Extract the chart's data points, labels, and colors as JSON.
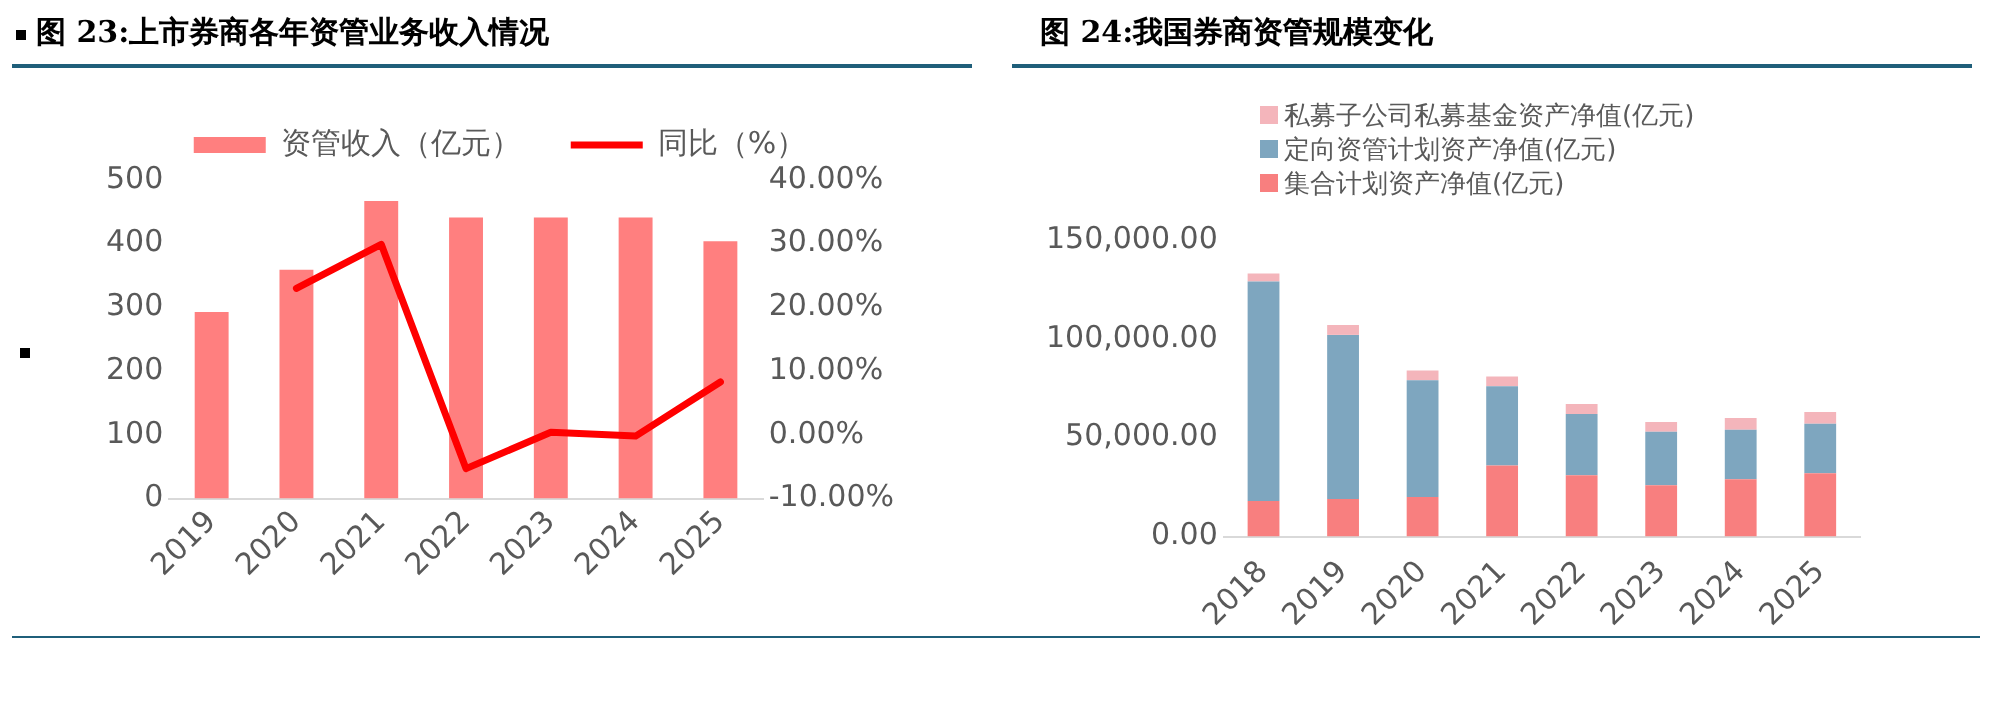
{
  "chart_data": [
    {
      "type": "bar",
      "title": "图 23:上市券商各年资管业务收入情况",
      "categories": [
        "2019",
        "2020",
        "2021",
        "2022",
        "2023",
        "2024",
        "2025"
      ],
      "series": [
        {
          "name": "资管收入（亿元）",
          "type": "bar",
          "color": "#ff7f7f",
          "values": [
            293,
            359,
            467,
            441,
            441,
            441,
            404
          ]
        },
        {
          "name": "同比（%）",
          "type": "line",
          "axis": "y2",
          "color": "#ff0000",
          "values": [
            null,
            23.0,
            29.9,
            -5.3,
            0.4,
            -0.2,
            8.3
          ]
        }
      ],
      "ylim": [
        0,
        500
      ],
      "yticks": [
        0,
        100,
        200,
        300,
        400,
        500
      ],
      "y2lim": [
        -10,
        40
      ],
      "y2ticks": [
        {
          "value": -10,
          "label": "-10.00%"
        },
        {
          "value": 0,
          "label": "0.00%"
        },
        {
          "value": 10,
          "label": "10.00%"
        },
        {
          "value": 20,
          "label": "20.00%"
        },
        {
          "value": 30,
          "label": "30.00%"
        },
        {
          "value": 40,
          "label": "40.00%"
        }
      ],
      "grid": false,
      "legend": "top",
      "marker": "none"
    },
    {
      "type": "bar",
      "title": "图 24:我国券商资管规模变化",
      "categories": [
        "2018",
        "2019",
        "2020",
        "2021",
        "2022",
        "2023",
        "2024",
        "2025"
      ],
      "stacked": true,
      "series": [
        {
          "name": "集合计划资产净值(亿元)",
          "color": "#f87f7f",
          "values": [
            18000,
            19000,
            20000,
            36000,
            31000,
            26000,
            29000,
            32000
          ]
        },
        {
          "name": "定向资管计划资产净值(亿元)",
          "color": "#7ea6bf",
          "values": [
            111000,
            83000,
            59000,
            40000,
            31000,
            27000,
            25000,
            25000
          ]
        },
        {
          "name": "私募子公司私募基金资产净值(亿元)",
          "color": "#f4b5bb",
          "values": [
            4000,
            5000,
            5000,
            5000,
            5000,
            5000,
            6000,
            6000
          ]
        }
      ],
      "ylim": [
        0,
        150000
      ],
      "yticks": [
        {
          "value": 0,
          "label": "0.00"
        },
        {
          "value": 50000,
          "label": "50,000.00"
        },
        {
          "value": 100000,
          "label": "100,000.00"
        },
        {
          "value": 150000,
          "label": "150,000.00"
        }
      ],
      "grid": false,
      "legend": "top left"
    }
  ]
}
